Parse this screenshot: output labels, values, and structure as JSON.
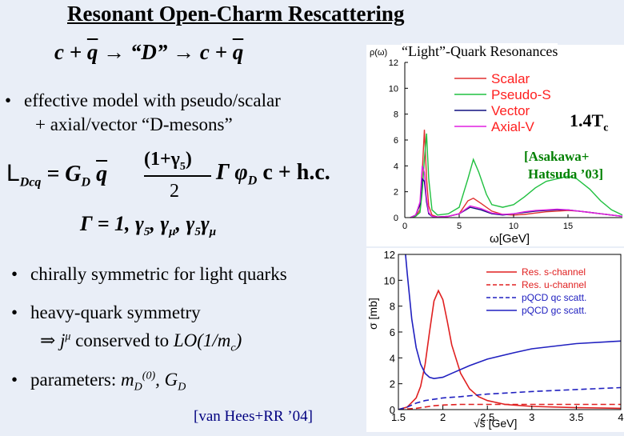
{
  "slide": {
    "title": "Resonant Open-Charm Rescattering",
    "reaction": {
      "c1": "c + ",
      "q1": "q",
      "arrow1": " → “D” → c + ",
      "q2": "q"
    },
    "bullets": {
      "b1_line1": "effective model with pseudo/scalar",
      "b1_line2": "+ axial/vector “D-mesons”",
      "b2": "chirally symmetric for light quarks",
      "b3_line1": "heavy-quark symmetry",
      "b3_line2_pre": "⇒ j",
      "b3_line2_sup": "μ",
      "b3_line2_mid": " conserved to ",
      "b3_line2_lo": "LO(1/m",
      "b3_line2_sub": "c",
      "b3_line2_end": ")",
      "b4_pre": "parameters:   ",
      "b4_m": "m",
      "b4_msub": "D",
      "b4_msup": "(0)",
      "b4_g": ", G",
      "b4_gsub": "D"
    },
    "bullet_symbol": "•",
    "citation_bottom": "[van Hees+RR ’04]",
    "lagrangian": {
      "L": "L",
      "Lsub": "Dcq",
      "eq": " = G",
      "Gsub": "D",
      "qbar": "q",
      "frac_num": "(1+γ",
      "frac_num_sub": "5",
      "frac_num_end": ")",
      "frac_den": "2",
      "gamma": "Γ",
      "phi": " φ",
      "phisub": "D",
      "c": " c  +  h.c.",
      "gamma_list": "Γ = 1, γ",
      "gl_sub1": "5",
      "gl_mid1": ", γ",
      "gl_sub2": "μ",
      "gl_mid2": ", γ",
      "gl_sub3": "5",
      "gl_mid3": "γ",
      "gl_sub4": "μ"
    }
  },
  "spectral_panel": {
    "heading": "“Light”-Quark Resonances",
    "y_axis_label": "ρ(ω)",
    "x_axis_label": "ω[GeV]",
    "temperature": "1.4T",
    "temperature_sub": "c",
    "citation_line1": "[Asakawa+",
    "citation_line2": "Hatsuda ’03]",
    "legend_color": "#ff2020",
    "chart_data": {
      "type": "line",
      "xlim": [
        0,
        20
      ],
      "ylim": [
        0,
        12
      ],
      "x_ticks": [
        "0",
        "5",
        "10",
        "15"
      ],
      "y_ticks": [
        "0",
        "2",
        "4",
        "6",
        "8",
        "10",
        "12"
      ],
      "series": [
        {
          "name": "Scalar",
          "color": "#e03030",
          "x": [
            0.5,
            1.0,
            1.4,
            1.6,
            1.8,
            2.0,
            2.2,
            2.5,
            3.0,
            4.0,
            5.0,
            5.8,
            6.3,
            7.0,
            8.0,
            9.0,
            10.0,
            11.0,
            12.0,
            13.0,
            14.0,
            15.0,
            16.0,
            17.0,
            18.0,
            19.0,
            20.0
          ],
          "y": [
            0,
            0.1,
            0.6,
            3.5,
            6.8,
            3.0,
            0.9,
            0.2,
            0.05,
            0.1,
            0.3,
            1.3,
            1.5,
            1.1,
            0.5,
            0.25,
            0.2,
            0.25,
            0.35,
            0.45,
            0.5,
            0.55,
            0.5,
            0.4,
            0.3,
            0.2,
            0.1
          ]
        },
        {
          "name": "Pseudo-S",
          "color": "#20c040",
          "x": [
            0.5,
            1.0,
            1.4,
            1.6,
            1.8,
            2.0,
            2.2,
            2.5,
            3.0,
            4.0,
            5.0,
            5.8,
            6.3,
            6.8,
            7.5,
            8.0,
            9.0,
            10.0,
            11.0,
            12.0,
            13.0,
            14.0,
            15.0,
            15.8,
            17.0,
            18.0,
            19.0,
            20.0
          ],
          "y": [
            0,
            0.1,
            0.4,
            2.0,
            4.5,
            6.5,
            3.0,
            0.6,
            0.2,
            0.3,
            0.8,
            3.0,
            4.5,
            3.5,
            1.8,
            1.0,
            0.8,
            1.0,
            1.6,
            2.3,
            2.8,
            3.0,
            3.2,
            3.0,
            2.2,
            1.3,
            0.6,
            0.2
          ]
        },
        {
          "name": "Vector",
          "color": "#101080",
          "x": [
            0.5,
            1.0,
            1.4,
            1.6,
            1.8,
            2.0,
            2.2,
            2.5,
            3.0,
            4.0,
            5.0,
            6.0,
            7.0,
            8.0,
            9.0,
            10.0,
            11.0,
            12.0,
            13.0,
            14.0,
            15.0,
            16.0,
            17.0,
            18.0,
            19.0,
            20.0
          ],
          "y": [
            0,
            0.2,
            1.0,
            3.0,
            2.8,
            1.2,
            0.3,
            0.1,
            0.05,
            0.1,
            0.3,
            0.8,
            0.6,
            0.3,
            0.2,
            0.3,
            0.4,
            0.5,
            0.55,
            0.6,
            0.6,
            0.5,
            0.4,
            0.3,
            0.2,
            0.1
          ]
        },
        {
          "name": "Axial-V",
          "color": "#e020e0",
          "x": [
            0.5,
            1.0,
            1.4,
            1.6,
            1.8,
            2.0,
            2.2,
            2.5,
            3.0,
            4.0,
            5.0,
            6.0,
            7.0,
            8.0,
            9.0,
            10.0,
            11.0,
            12.0,
            13.0,
            14.0,
            15.0,
            16.0,
            17.0,
            18.0,
            19.0,
            20.0
          ],
          "y": [
            0,
            0.2,
            1.2,
            4.0,
            3.5,
            1.5,
            0.4,
            0.1,
            0.05,
            0.1,
            0.3,
            0.9,
            0.7,
            0.35,
            0.25,
            0.3,
            0.45,
            0.55,
            0.6,
            0.65,
            0.6,
            0.5,
            0.4,
            0.3,
            0.2,
            0.1
          ]
        }
      ]
    }
  },
  "cross_section_panel": {
    "y_axis_label": "σ [mb]",
    "x_axis_label": "√s [GeV]",
    "chart_data": {
      "type": "line",
      "xlim": [
        1.5,
        4
      ],
      "ylim": [
        0,
        12
      ],
      "x_ticks": [
        "1.5",
        "2",
        "2.5",
        "3",
        "3.5",
        "4"
      ],
      "y_ticks": [
        "0",
        "2",
        "4",
        "6",
        "8",
        "10",
        "12"
      ],
      "series": [
        {
          "name": "Res. s-channel",
          "color": "#e02020",
          "dash": "solid",
          "x": [
            1.5,
            1.6,
            1.7,
            1.75,
            1.8,
            1.85,
            1.9,
            1.95,
            2.0,
            2.05,
            2.1,
            2.2,
            2.3,
            2.4,
            2.5,
            2.7,
            3.0,
            3.5,
            4.0
          ],
          "y": [
            0,
            0.2,
            0.9,
            1.8,
            3.5,
            6.0,
            8.4,
            9.2,
            8.5,
            6.8,
            5.0,
            2.8,
            1.6,
            1.0,
            0.7,
            0.4,
            0.25,
            0.15,
            0.1
          ]
        },
        {
          "name": "Res. u-channel",
          "color": "#e02020",
          "dash": "dashed",
          "x": [
            1.5,
            1.7,
            1.8,
            1.9,
            2.0,
            2.2,
            2.5,
            3.0,
            3.5,
            4.0
          ],
          "y": [
            0,
            0.1,
            0.2,
            0.3,
            0.35,
            0.4,
            0.4,
            0.4,
            0.4,
            0.4
          ]
        },
        {
          "name": "pQCD qc scatt.",
          "color": "#2020c0",
          "dash": "dashed",
          "x": [
            1.5,
            1.6,
            1.7,
            1.8,
            2.0,
            2.2,
            2.5,
            3.0,
            3.5,
            4.0
          ],
          "y": [
            0,
            0.2,
            0.5,
            0.7,
            0.9,
            1.0,
            1.2,
            1.4,
            1.55,
            1.7
          ]
        },
        {
          "name": "pQCD gc scatt.",
          "color": "#2020c0",
          "dash": "solid",
          "x": [
            1.58,
            1.6,
            1.65,
            1.7,
            1.75,
            1.8,
            1.85,
            1.9,
            2.0,
            2.1,
            2.3,
            2.5,
            2.8,
            3.0,
            3.5,
            4.0
          ],
          "y": [
            12,
            10.5,
            7.0,
            4.8,
            3.5,
            2.8,
            2.5,
            2.4,
            2.5,
            2.8,
            3.4,
            3.9,
            4.4,
            4.7,
            5.1,
            5.3
          ]
        }
      ]
    }
  }
}
